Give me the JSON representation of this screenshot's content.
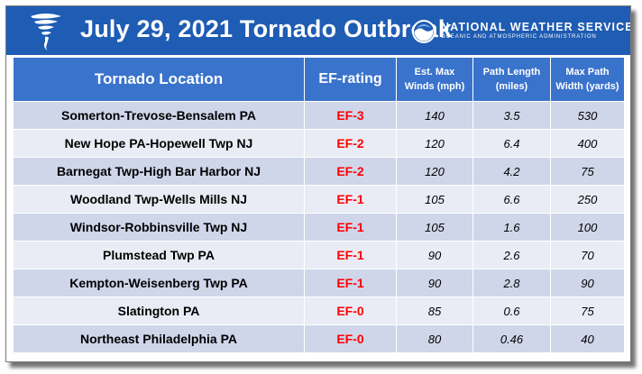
{
  "header": {
    "title": "July 29, 2021 Tornado Outbreak",
    "agency_name": "NATIONAL WEATHER SERVICE",
    "agency_subtitle": "OCEANIC AND ATMOSPHERIC ADMINISTRATION"
  },
  "colors": {
    "banner": "#1f5cb3",
    "header_cell": "#3a73cc",
    "row_odd": "#cfd6ea",
    "row_even": "#e9ecf5",
    "ef_rating_text": "#ff0000"
  },
  "table": {
    "columns": {
      "location": "Tornado Location",
      "ef": "EF-rating",
      "winds_line1": "Est. Max",
      "winds_line2": "Winds (mph)",
      "length_line1": "Path Length",
      "length_line2": "(miles)",
      "width_line1": "Max Path",
      "width_line2": "Width (yards)"
    },
    "rows": [
      {
        "location": "Somerton-Trevose-Bensalem PA",
        "ef": "EF-3",
        "winds": "140",
        "length": "3.5",
        "width": "530"
      },
      {
        "location": "New Hope PA-Hopewell Twp NJ",
        "ef": "EF-2",
        "winds": "120",
        "length": "6.4",
        "width": "400"
      },
      {
        "location": "Barnegat Twp-High Bar Harbor NJ",
        "ef": "EF-2",
        "winds": "120",
        "length": "4.2",
        "width": "75"
      },
      {
        "location": "Woodland Twp-Wells Mills NJ",
        "ef": "EF-1",
        "winds": "105",
        "length": "6.6",
        "width": "250"
      },
      {
        "location": "Windsor-Robbinsville Twp NJ",
        "ef": "EF-1",
        "winds": "105",
        "length": "1.6",
        "width": "100"
      },
      {
        "location": "Plumstead Twp PA",
        "ef": "EF-1",
        "winds": "90",
        "length": "2.6",
        "width": "70"
      },
      {
        "location": "Kempton-Weisenberg Twp PA",
        "ef": "EF-1",
        "winds": "90",
        "length": "2.8",
        "width": "90"
      },
      {
        "location": "Slatington PA",
        "ef": "EF-0",
        "winds": "85",
        "length": "0.6",
        "width": "75"
      },
      {
        "location": "Northeast Philadelphia PA",
        "ef": "EF-0",
        "winds": "80",
        "length": "0.46",
        "width": "40"
      }
    ]
  }
}
